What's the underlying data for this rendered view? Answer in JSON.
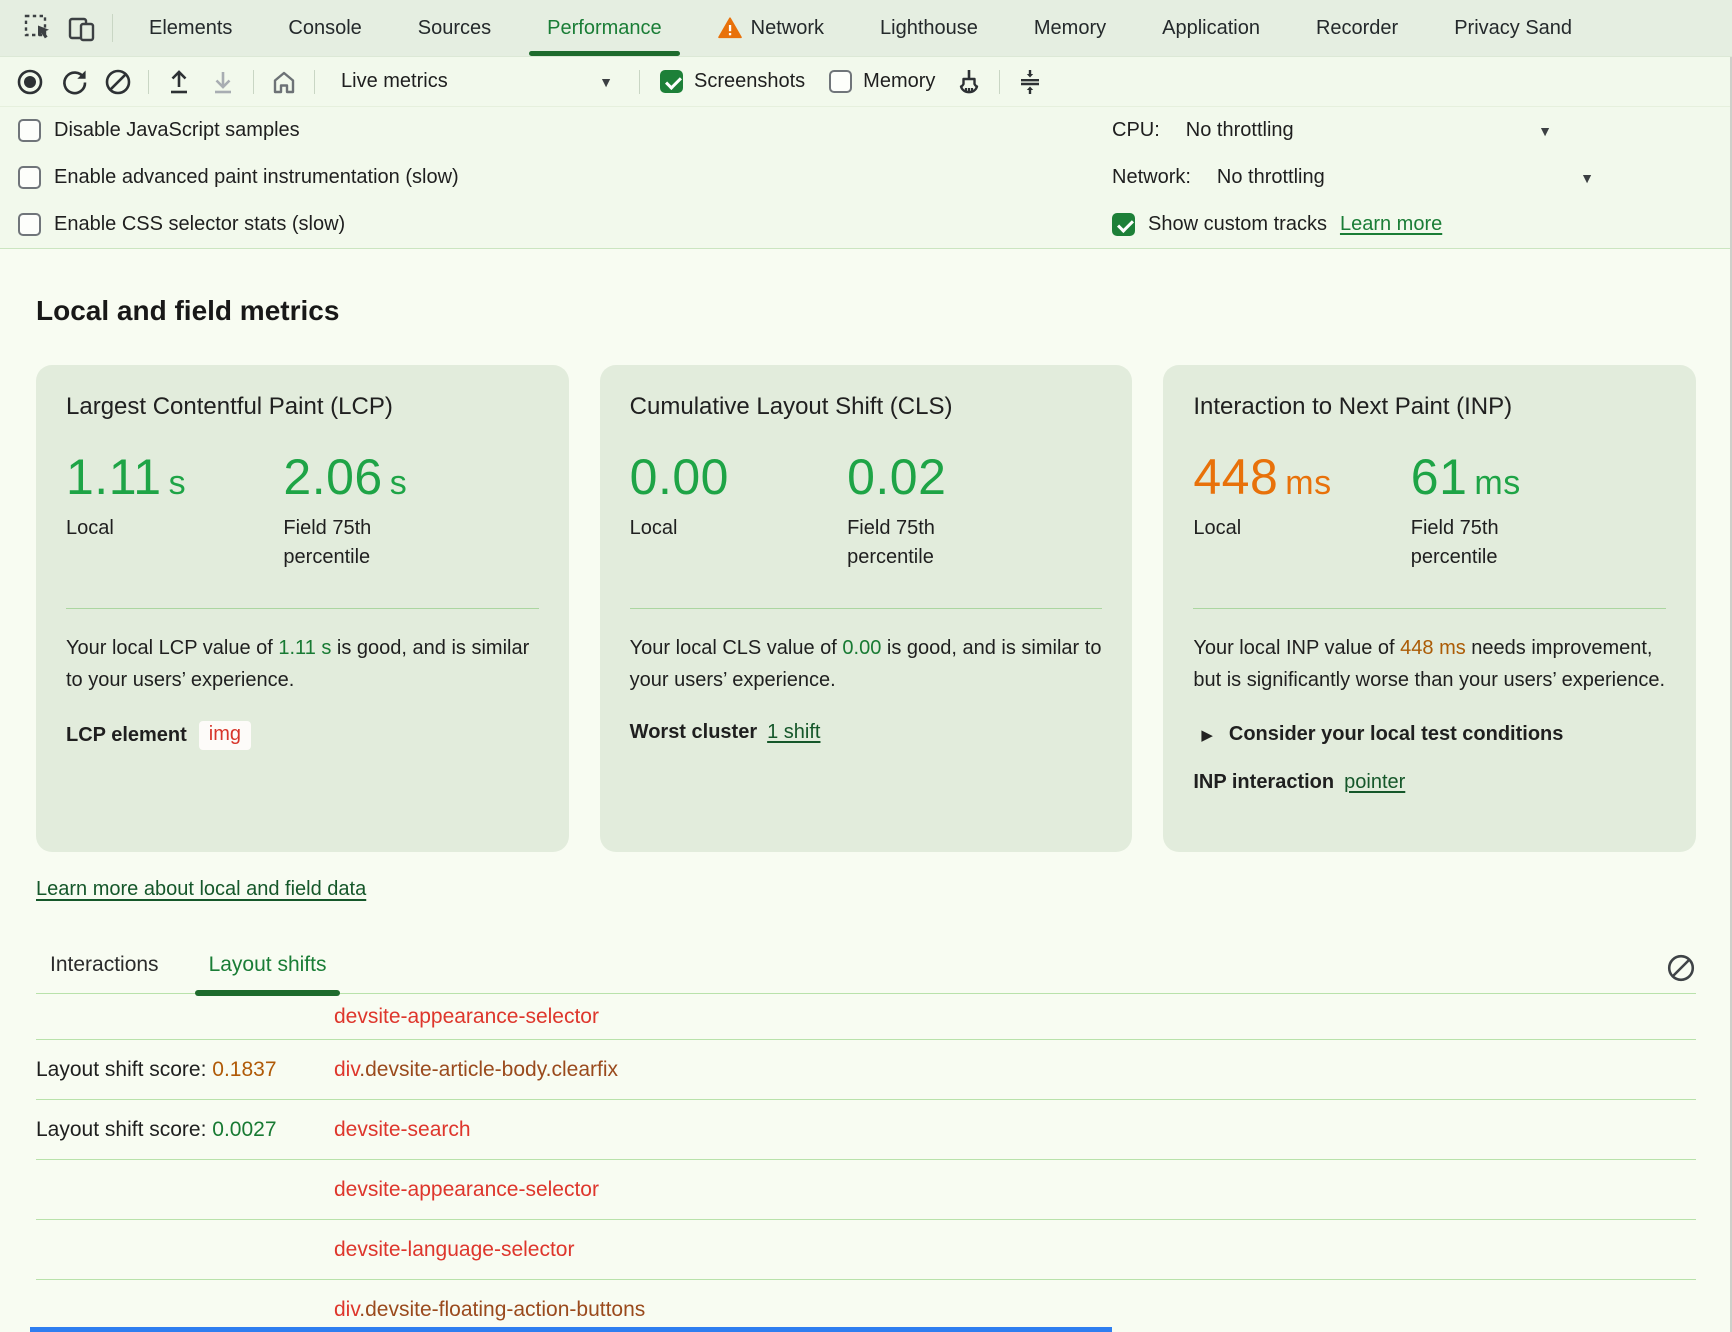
{
  "tabbar": {
    "tabs": [
      {
        "label": "Elements"
      },
      {
        "label": "Console"
      },
      {
        "label": "Sources"
      },
      {
        "label": "Performance",
        "selected": true
      },
      {
        "label": "Network",
        "warning": true
      },
      {
        "label": "Lighthouse"
      },
      {
        "label": "Memory"
      },
      {
        "label": "Application"
      },
      {
        "label": "Recorder"
      },
      {
        "label": "Privacy Sand"
      }
    ]
  },
  "toolbar": {
    "live_metrics_label": "Live metrics",
    "screenshots_label": "Screenshots",
    "screenshots_checked": true,
    "memory_label": "Memory",
    "memory_checked": false
  },
  "settings": {
    "checkboxes": [
      {
        "label": "Disable JavaScript samples",
        "checked": false
      },
      {
        "label": "Enable advanced paint instrumentation (slow)",
        "checked": false
      },
      {
        "label": "Enable CSS selector stats (slow)",
        "checked": false
      }
    ],
    "cpu_label": "CPU:",
    "cpu_value": "No throttling",
    "network_label": "Network:",
    "network_value": "No throttling",
    "custom_tracks_label": "Show custom tracks",
    "custom_tracks_checked": true,
    "learn_more_label": "Learn more"
  },
  "metrics": {
    "heading": "Local and field metrics",
    "learn_more_link": "Learn more about local and field data",
    "cards": [
      {
        "title": "Largest Contentful Paint (LCP)",
        "local_value": "1.11",
        "local_unit": "s",
        "local_color": "green",
        "local_label": "Local",
        "field_value": "2.06",
        "field_unit": "s",
        "field_color": "green",
        "field_label": "Field 75th percentile",
        "desc_prefix": "Your local LCP value of ",
        "desc_value": "1.11 s",
        "desc_value_color": "green",
        "desc_suffix": " is good, and is similar to your users’ experience.",
        "extra_label": "LCP element",
        "extra_chip": "img"
      },
      {
        "title": "Cumulative Layout Shift (CLS)",
        "local_value": "0.00",
        "local_unit": "",
        "local_color": "green",
        "local_label": "Local",
        "field_value": "0.02",
        "field_unit": "",
        "field_color": "green",
        "field_label": "Field 75th percentile",
        "desc_prefix": "Your local CLS value of ",
        "desc_value": "0.00",
        "desc_value_color": "green",
        "desc_suffix": " is good, and is similar to your users’ experience.",
        "extra_label": "Worst cluster",
        "extra_link": "1 shift"
      },
      {
        "title": "Interaction to Next Paint (INP)",
        "local_value": "448",
        "local_unit": "ms",
        "local_color": "orange",
        "local_label": "Local",
        "field_value": "61",
        "field_unit": "ms",
        "field_color": "green",
        "field_label": "Field 75th percentile",
        "desc_prefix": "Your local INP value of ",
        "desc_value": "448 ms",
        "desc_value_color": "orange",
        "desc_suffix": " needs improvement, but is significantly worse than your users’ experience.",
        "disclosure_label": "Consider your local test conditions",
        "extra_label": "INP interaction",
        "extra_link": "pointer"
      }
    ]
  },
  "logs": {
    "tabs": [
      {
        "label": "Interactions"
      },
      {
        "label": "Layout shifts",
        "selected": true
      }
    ],
    "rows": [
      {
        "element_parts": [
          {
            "text": "devsite-appearance-selector",
            "color": "red"
          }
        ]
      },
      {
        "score_label": "Layout shift score: ",
        "score_value": "0.1837",
        "score_color": "orange",
        "element_parts": [
          {
            "text": "div",
            "color": "red"
          },
          {
            "text": ".devsite-article-body.clearfix",
            "color": "brown"
          }
        ]
      },
      {
        "score_label": "Layout shift score: ",
        "score_value": "0.0027",
        "score_color": "green",
        "element_parts": [
          {
            "text": "devsite-search",
            "color": "red"
          }
        ]
      },
      {
        "element_parts": [
          {
            "text": "devsite-appearance-selector",
            "color": "red"
          }
        ]
      },
      {
        "element_parts": [
          {
            "text": "devsite-language-selector",
            "color": "red"
          }
        ]
      },
      {
        "element_parts": [
          {
            "text": "div",
            "color": "red"
          },
          {
            "text": ".devsite-floating-action-buttons",
            "color": "brown"
          }
        ]
      }
    ]
  }
}
